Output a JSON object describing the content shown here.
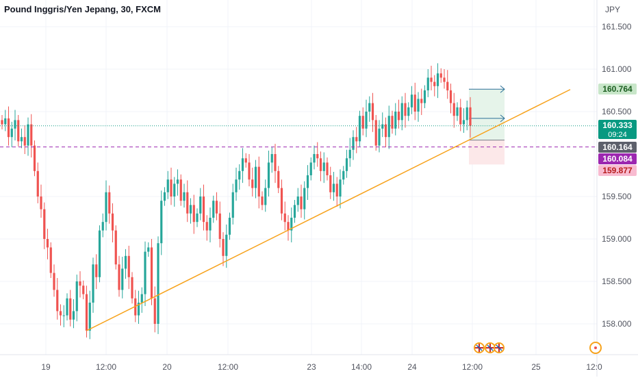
{
  "header": {
    "title": "Pound Inggris/Yen Jepang, 30, FXCM",
    "currency": "JPY"
  },
  "chart_data": {
    "type": "candlestick",
    "symbol": "Pound Inggris/Yen Jepang",
    "interval": "30",
    "source": "FXCM",
    "y_unit": "JPY",
    "ylim": [
      157.75,
      161.75
    ],
    "y_ticks": [
      "161.500",
      "161.000",
      "160.500",
      "159.500",
      "159.000",
      "158.500",
      "158.000"
    ],
    "x_ticks": [
      "19",
      "12:00",
      "20",
      "12:00",
      "23",
      "14:00",
      "24",
      "12:00",
      "25",
      "12:0"
    ],
    "price_labels": [
      {
        "value": 160.764,
        "text": "160.764",
        "role": "target"
      },
      {
        "value": 160.333,
        "text": "160.333",
        "sub": "09:24",
        "role": "last"
      },
      {
        "value": 160.164,
        "text": "160.164",
        "role": "entry"
      },
      {
        "value": 160.084,
        "text": "160.084",
        "role": "dashed"
      },
      {
        "value": 159.877,
        "text": "159.877",
        "role": "stop"
      }
    ],
    "trendline": {
      "from": [
        0,
        157.92
      ],
      "to": [
        171,
        160.76
      ]
    },
    "closes": [
      160.35,
      160.42,
      160.2,
      160.3,
      160.4,
      160.15,
      160.2,
      160.1,
      160.35,
      160.1,
      159.8,
      159.5,
      159.35,
      159.0,
      158.9,
      158.6,
      158.4,
      158.15,
      158.1,
      158.1,
      158.3,
      158.05,
      158.15,
      158.5,
      158.45,
      158.35,
      157.92,
      158.25,
      158.7,
      158.55,
      159.1,
      159.2,
      159.55,
      159.3,
      159.1,
      158.7,
      158.4,
      158.65,
      158.8,
      158.55,
      158.3,
      158.1,
      158.25,
      158.35,
      158.85,
      158.9,
      158.3,
      158.0,
      158.95,
      159.45,
      159.55,
      159.7,
      159.5,
      159.65,
      159.7,
      159.45,
      159.55,
      159.3,
      159.4,
      159.2,
      159.3,
      159.5,
      159.2,
      159.1,
      159.25,
      159.45,
      159.3,
      159.0,
      158.8,
      159.05,
      159.25,
      159.55,
      159.7,
      159.8,
      159.95,
      159.9,
      159.7,
      159.6,
      159.85,
      159.5,
      159.4,
      159.6,
      159.9,
      160.0,
      159.8,
      159.6,
      159.3,
      159.2,
      159.1,
      159.25,
      159.4,
      159.5,
      159.35,
      159.6,
      159.75,
      159.9,
      160.0,
      159.95,
      159.8,
      159.9,
      159.75,
      159.55,
      159.65,
      159.5,
      159.7,
      159.8,
      159.95,
      160.05,
      160.2,
      160.15,
      160.45,
      160.3,
      160.5,
      160.6,
      160.4,
      160.1,
      160.3,
      160.35,
      160.2,
      160.45,
      160.3,
      160.5,
      160.4,
      160.6,
      160.45,
      160.55,
      160.7,
      160.5,
      160.65,
      160.6,
      160.75,
      160.9,
      160.85,
      160.8,
      160.95,
      160.9,
      160.85,
      160.75,
      160.6,
      160.45,
      160.55,
      160.35,
      160.4,
      160.55,
      160.333
    ],
    "candle_colors": {
      "up": "#26a69a",
      "down": "#ef5350"
    },
    "colors": {
      "trendline": "#f7a21b",
      "target_zone": "#e6f4ea",
      "stop_zone": "#fce8e9",
      "last_price": "#089981",
      "dashed": "#9c27b0",
      "axis_text": "#50535e"
    },
    "icons": [
      "uk-flag-event-icon",
      "uk-flag-event-icon",
      "uk-flag-event-icon",
      "event-clock-icon"
    ]
  }
}
